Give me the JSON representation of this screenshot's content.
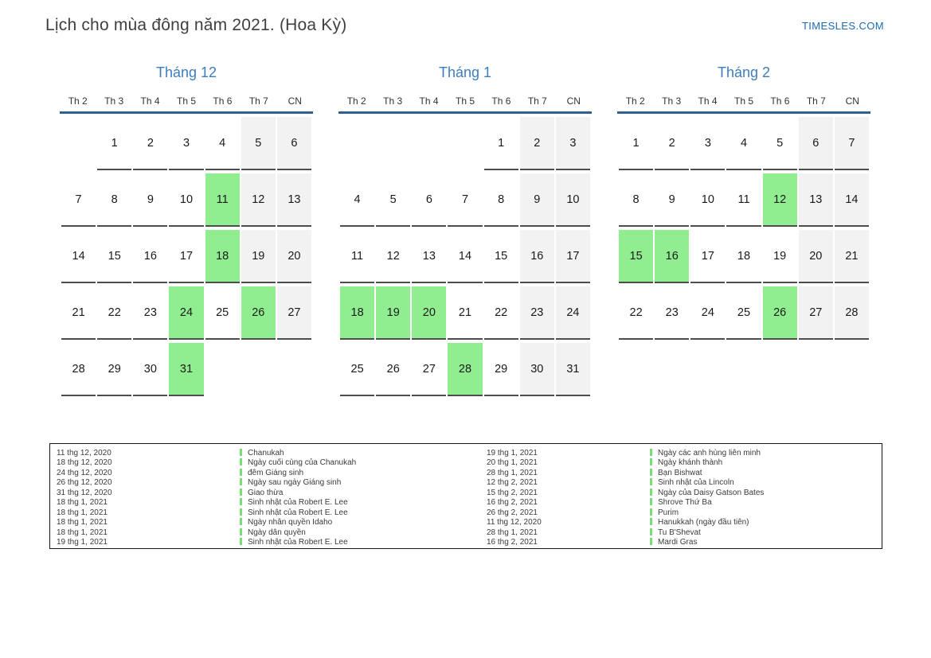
{
  "page": {
    "title": "Lịch cho mùa đông năm 2021. (Hoa Kỳ)",
    "brand": "TIMESLES.COM"
  },
  "colors": {
    "holiday_green": "#90ee90",
    "weekend_gray": "#f2f2f2",
    "month_title_blue": "#3d7dbf",
    "header_line_blue": "#2f608f",
    "brand_blue": "#1b6ab3",
    "legend_bar_green": "#79dc79"
  },
  "day_headers": [
    "Th 2",
    "Th 3",
    "Th 4",
    "Th 5",
    "Th 6",
    "Th 7",
    "CN"
  ],
  "months": [
    {
      "title": "Tháng 12",
      "weeks": [
        [
          null,
          1,
          2,
          3,
          4,
          5,
          6
        ],
        [
          7,
          8,
          9,
          10,
          11,
          12,
          13
        ],
        [
          14,
          15,
          16,
          17,
          18,
          19,
          20
        ],
        [
          21,
          22,
          23,
          24,
          25,
          26,
          27
        ],
        [
          28,
          29,
          30,
          31,
          null,
          null,
          null
        ]
      ],
      "holidays": [
        11,
        18,
        24,
        26,
        31
      ]
    },
    {
      "title": "Tháng 1",
      "weeks": [
        [
          null,
          null,
          null,
          null,
          1,
          2,
          3
        ],
        [
          4,
          5,
          6,
          7,
          8,
          9,
          10
        ],
        [
          11,
          12,
          13,
          14,
          15,
          16,
          17
        ],
        [
          18,
          19,
          20,
          21,
          22,
          23,
          24
        ],
        [
          25,
          26,
          27,
          28,
          29,
          30,
          31
        ]
      ],
      "holidays": [
        18,
        19,
        20,
        28
      ]
    },
    {
      "title": "Tháng 2",
      "weeks": [
        [
          1,
          2,
          3,
          4,
          5,
          6,
          7
        ],
        [
          8,
          9,
          10,
          11,
          12,
          13,
          14
        ],
        [
          15,
          16,
          17,
          18,
          19,
          20,
          21
        ],
        [
          22,
          23,
          24,
          25,
          26,
          27,
          28
        ]
      ],
      "holidays": [
        12,
        15,
        16,
        26
      ]
    }
  ],
  "legend": {
    "left": [
      {
        "date": "11 thg 12, 2020",
        "event": "Chanukah"
      },
      {
        "date": "18 thg 12, 2020",
        "event": "Ngày cuối cùng của Chanukah"
      },
      {
        "date": "24 thg 12, 2020",
        "event": "đêm Giáng sinh"
      },
      {
        "date": "26 thg 12, 2020",
        "event": "Ngày sau ngày Giáng sinh"
      },
      {
        "date": "31 thg 12, 2020",
        "event": "Giao thừa"
      },
      {
        "date": "18 thg 1, 2021",
        "event": "Sinh nhật của Robert E. Lee"
      },
      {
        "date": "18 thg 1, 2021",
        "event": "Sinh nhật của Robert E. Lee"
      },
      {
        "date": "18 thg 1, 2021",
        "event": "Ngày nhân quyền Idaho"
      },
      {
        "date": "18 thg 1, 2021",
        "event": "Ngày dân quyền"
      },
      {
        "date": "19 thg 1, 2021",
        "event": "Sinh nhật của Robert E. Lee"
      }
    ],
    "right": [
      {
        "date": "19 thg 1, 2021",
        "event": "Ngày các anh hùng liên minh"
      },
      {
        "date": "20 thg 1, 2021",
        "event": "Ngày khánh thành"
      },
      {
        "date": "28 thg 1, 2021",
        "event": "Bạn Bishwat"
      },
      {
        "date": "12 thg 2, 2021",
        "event": "Sinh nhật của Lincoln"
      },
      {
        "date": "15 thg 2, 2021",
        "event": "Ngày của Daisy Gatson Bates"
      },
      {
        "date": "16 thg 2, 2021",
        "event": "Shrove Thứ Ba"
      },
      {
        "date": "26 thg 2, 2021",
        "event": "Purim"
      },
      {
        "date": "11 thg 12, 2020",
        "event": "Hanukkah (ngày đầu tiên)"
      },
      {
        "date": "28 thg 1, 2021",
        "event": "Tu B'Shevat"
      },
      {
        "date": "16 thg 2, 2021",
        "event": "Mardi Gras"
      }
    ]
  }
}
